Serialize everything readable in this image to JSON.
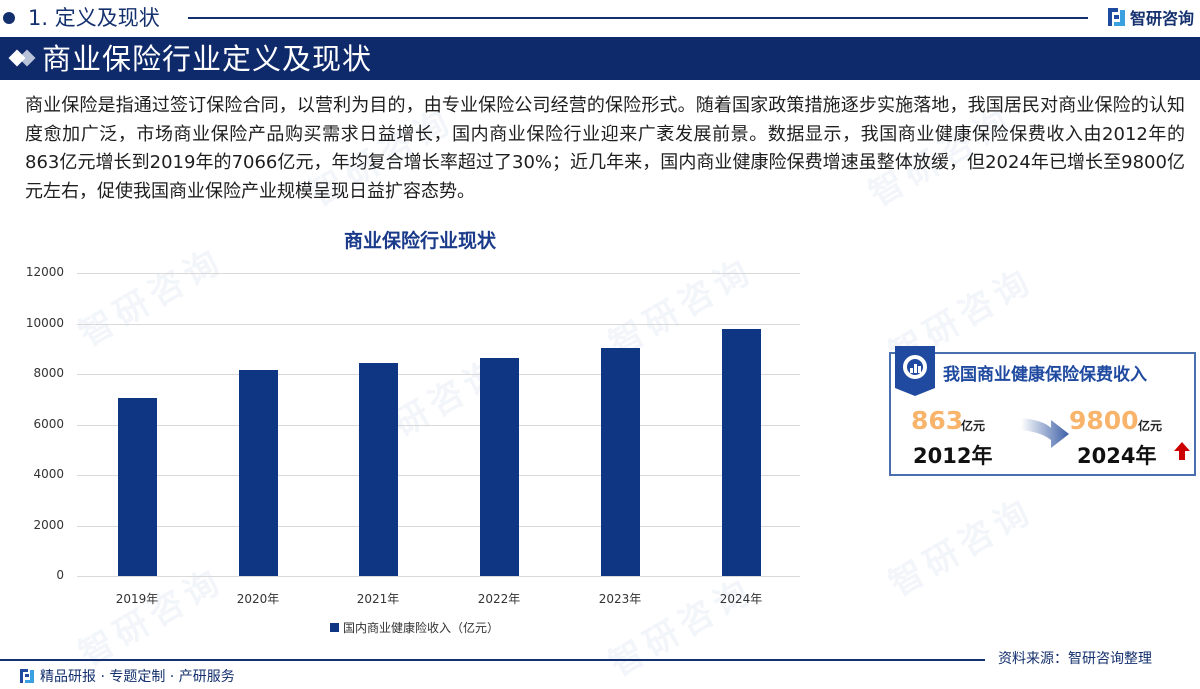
{
  "section": {
    "title": "1. 定义及现状",
    "brand": "智研咨询"
  },
  "banner": {
    "title": "商业保险行业定义及现状"
  },
  "paragraph": "商业保险是指通过签订保险合同，以营利为目的，由专业保险公司经营的保险形式。随着国家政策措施逐步实施落地，我国居民对商业保险的认知度愈加广泛，市场商业保险产品购买需求日益增长，国内商业保险行业迎来广袤发展前景。数据显示，我国商业健康保险保费收入由2012年的863亿元增长到2019年的7066亿元，年均复合增长率超过了30%；近几年来，国内商业健康险保费增速虽整体放缓，但2024年已增长至9800亿元左右，促使我国商业保险产业规模呈现日益扩容态势。",
  "chart_data": {
    "type": "bar",
    "title": "商业保险行业现状",
    "categories": [
      "2019年",
      "2020年",
      "2021年",
      "2022年",
      "2023年",
      "2024年"
    ],
    "series": [
      {
        "name": "国内商业健康险收入（亿元）",
        "values": [
          7066,
          8173,
          8447,
          8653,
          9035,
          9800
        ],
        "color": "#0f3683"
      }
    ],
    "xlabel": "",
    "ylabel": "",
    "ylim": [
      0,
      12000
    ],
    "yticks": [
      0,
      2000,
      4000,
      6000,
      8000,
      10000,
      12000
    ],
    "grid": true,
    "legend_position": "bottom"
  },
  "info_box": {
    "title": "我国商业健康保险保费收入",
    "from_value": "863",
    "from_unit": "亿元",
    "from_year": "2012年",
    "to_value": "9800",
    "to_unit": "亿元",
    "to_year": "2024年",
    "trend": "up"
  },
  "footer": {
    "tagline": "精品研报 · 专题定制 · 产研服务",
    "source": "资料来源：智研咨询整理"
  },
  "colors": {
    "navy": "#0f2a6a",
    "bar": "#0f3683",
    "highlight_number": "#f7b46a",
    "up_arrow": "#cc0000"
  }
}
